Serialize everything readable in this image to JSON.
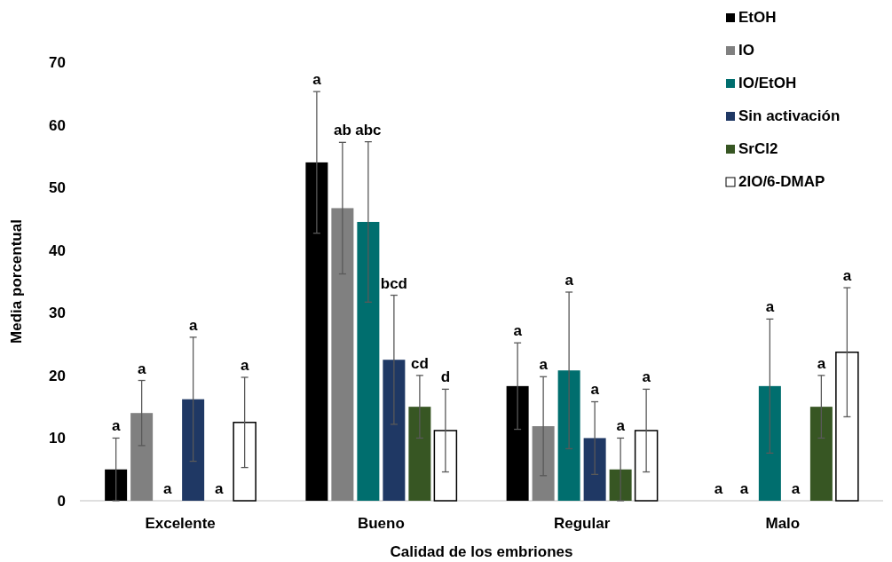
{
  "chart_data": {
    "type": "bar",
    "xlabel": "Calidad de los embriones",
    "ylabel": "Media porcentual",
    "categories": [
      "Excelente",
      "Bueno",
      "Regular",
      "Malo"
    ],
    "ylim": [
      0,
      70
    ],
    "yticks": [
      0,
      10,
      20,
      30,
      40,
      50,
      60,
      70
    ],
    "grid": false,
    "legend": "top right",
    "series": [
      {
        "name": "EtOH",
        "color": "#000000",
        "values": [
          5,
          54,
          18.3,
          0
        ],
        "errors": [
          5,
          11.3,
          6.9,
          null
        ]
      },
      {
        "name": "IO",
        "color": "#808080",
        "values": [
          14,
          46.7,
          11.9,
          0
        ],
        "errors": [
          5.2,
          10.5,
          7.9,
          null
        ]
      },
      {
        "name": "IO/EtOH",
        "color": "#006e6e",
        "values": [
          0,
          44.5,
          20.8,
          18.3
        ],
        "errors": [
          null,
          12.8,
          12.5,
          10.7
        ]
      },
      {
        "name": "Sin activación",
        "color": "#1f3864",
        "values": [
          16.2,
          22.5,
          10,
          0
        ],
        "errors": [
          9.9,
          10.3,
          5.8,
          null
        ]
      },
      {
        "name": "SrCl2",
        "color": "#375623",
        "values": [
          0,
          15,
          5,
          15
        ],
        "errors": [
          null,
          5,
          5,
          5
        ]
      },
      {
        "name": "2IO/6-DMAP",
        "color": "#ffffff",
        "values": [
          12.5,
          11.2,
          11.2,
          23.7
        ],
        "errors": [
          7.2,
          6.6,
          6.6,
          10.3
        ]
      }
    ],
    "annotations": [
      "a",
      "a",
      "a",
      "a",
      "a",
      "ab",
      "a",
      "a",
      "a",
      "abc",
      "a",
      "a",
      "a",
      "bcd",
      "a",
      "a",
      "a",
      "cd",
      "a",
      "a",
      "a",
      "d",
      "a",
      "a"
    ]
  }
}
